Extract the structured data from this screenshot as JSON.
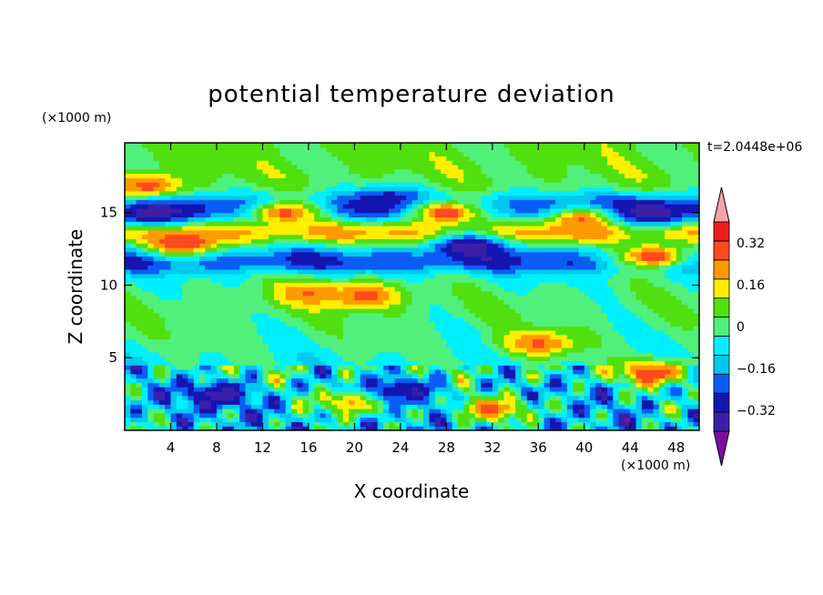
{
  "chart_data": {
    "type": "heatmap",
    "title": "potential temperature deviation",
    "xlabel": "X coordinate",
    "ylabel": "Z coordinate",
    "x_unit": "(×1000 m)",
    "y_unit": "(×1000 m)",
    "time_label": "t=2.0448e+06",
    "xlim": [
      0,
      50
    ],
    "ylim": [
      0,
      19.8
    ],
    "x_ticks": [
      4,
      8,
      12,
      16,
      20,
      24,
      28,
      32,
      36,
      40,
      44,
      48
    ],
    "y_ticks": [
      5,
      10,
      15
    ],
    "x_tick_labels": [
      "4",
      "8",
      "12",
      "16",
      "20",
      "24",
      "28",
      "32",
      "36",
      "40",
      "44",
      "48"
    ],
    "y_tick_labels": [
      "5",
      "10",
      "15"
    ],
    "colorbar": {
      "levels": [
        -0.4,
        -0.32,
        -0.24,
        -0.16,
        -0.08,
        0,
        0.08,
        0.16,
        0.24,
        0.32,
        0.4
      ],
      "labels": [
        "0.32",
        "0.16",
        "0",
        "−0.16",
        "−0.32"
      ],
      "label_values": [
        0.32,
        0.16,
        0,
        -0.16,
        -0.32
      ],
      "colors": [
        "#7a0fa0",
        "#3b1fa8",
        "#1515b0",
        "#0a5cf5",
        "#00c8ee",
        "#00f0ff",
        "#50f07a",
        "#50e010",
        "#ffee00",
        "#ff9a00",
        "#ff4a20",
        "#ee1c1c",
        "#f4a4a8"
      ],
      "under_color": "#7a0fa0",
      "over_color": "#f4a4a8"
    },
    "fields": {
      "band_centers_z": [
        17.0,
        15.3,
        13.5,
        12.1,
        10.0,
        8.5,
        6.5,
        4.8,
        2.0
      ],
      "band_values": [
        0.1,
        -0.3,
        0.36,
        -0.3,
        0.02,
        0.06,
        0.03,
        -0.02,
        -0.1
      ],
      "blobs": [
        {
          "x": 2,
          "z": 16.8,
          "value": 0.36
        },
        {
          "x": 5,
          "z": 12.9,
          "value": 0.4
        },
        {
          "x": 2.5,
          "z": 15.0,
          "value": -0.38
        },
        {
          "x": 14,
          "z": 15.0,
          "value": 0.36
        },
        {
          "x": 23,
          "z": 15.8,
          "value": -0.34
        },
        {
          "x": 28,
          "z": 15.0,
          "value": 0.4
        },
        {
          "x": 30,
          "z": 12.7,
          "value": -0.38
        },
        {
          "x": 40,
          "z": 14.5,
          "value": 0.34
        },
        {
          "x": 46,
          "z": 15.0,
          "value": -0.38
        },
        {
          "x": 46,
          "z": 12.0,
          "value": 0.4
        },
        {
          "x": 16,
          "z": 9.5,
          "value": 0.32
        },
        {
          "x": 21,
          "z": 9.3,
          "value": 0.36
        },
        {
          "x": 36,
          "z": 6.0,
          "value": 0.34
        },
        {
          "x": 46,
          "z": 4.0,
          "value": 0.38
        },
        {
          "x": 20,
          "z": 2.0,
          "value": 0.3
        },
        {
          "x": 32,
          "z": 1.5,
          "value": 0.34
        },
        {
          "x": 8,
          "z": 2.5,
          "value": -0.34
        },
        {
          "x": 24,
          "z": 2.8,
          "value": -0.32
        }
      ]
    }
  }
}
